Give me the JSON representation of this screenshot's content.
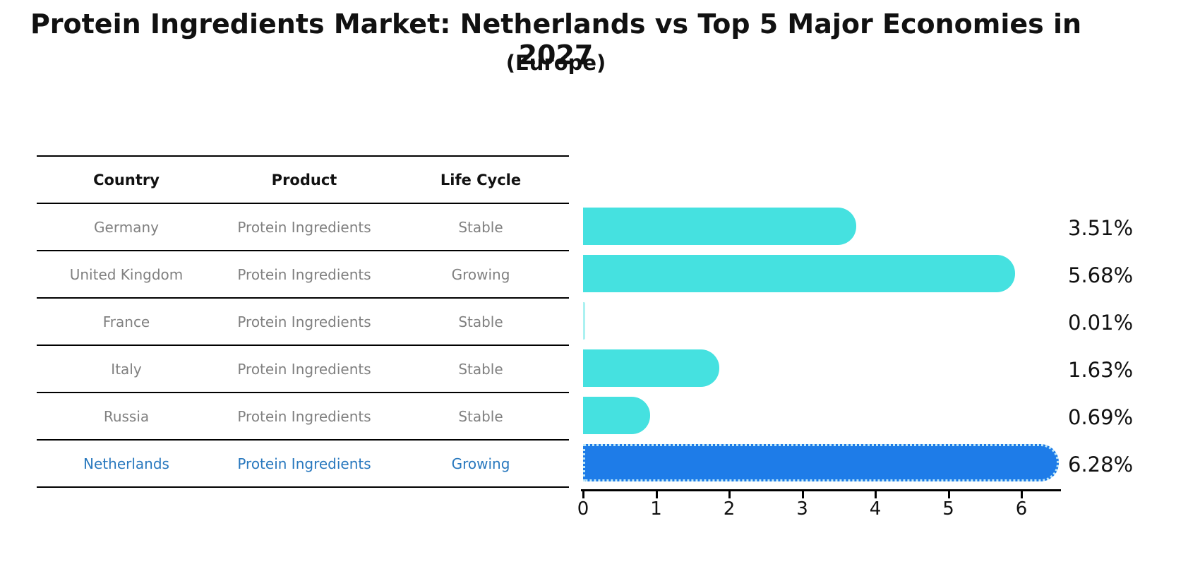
{
  "title": "Protein Ingredients Market: Netherlands vs Top 5 Major Economies in 2027",
  "subtitle": "(Europe)",
  "table": {
    "headers": [
      "Country",
      "Product",
      "Life Cycle"
    ],
    "rows": [
      {
        "country": "Germany",
        "product": "Protein Ingredients",
        "life_cycle": "Stable",
        "highlighted": false
      },
      {
        "country": "United Kingdom",
        "product": "Protein Ingredients",
        "life_cycle": "Growing",
        "highlighted": false
      },
      {
        "country": "France",
        "product": "Protein Ingredients",
        "life_cycle": "Stable",
        "highlighted": false
      },
      {
        "country": "Italy",
        "product": "Protein Ingredients",
        "life_cycle": "Stable",
        "highlighted": false
      },
      {
        "country": "Russia",
        "product": "Protein Ingredients",
        "life_cycle": "Stable",
        "highlighted": false
      },
      {
        "country": "Netherlands",
        "product": "Protein Ingredients",
        "life_cycle": "Growing",
        "highlighted": true
      }
    ]
  },
  "chart_data": {
    "type": "bar",
    "orientation": "horizontal",
    "title": "Protein Ingredients Market: Netherlands vs Top 5 Major Economies in 2027 (Europe)",
    "categories": [
      "Germany",
      "United Kingdom",
      "France",
      "Italy",
      "Russia",
      "Netherlands"
    ],
    "values": [
      3.51,
      5.68,
      0.01,
      1.63,
      0.69,
      6.28
    ],
    "value_labels": [
      "3.51%",
      "5.68%",
      "0.01%",
      "1.63%",
      "0.69%",
      "6.28%"
    ],
    "xlabel": "",
    "ylabel": "",
    "x_ticks": [
      0,
      1,
      2,
      3,
      4,
      5,
      6
    ],
    "xlim": [
      0,
      6.55
    ],
    "grid": false,
    "legend_position": "none",
    "highlight_index": 5,
    "bar_color": "#45E1E0",
    "highlight_bar_color": "#1E7CE8",
    "highlight_border_color": "#BEE8F8"
  },
  "colors": {
    "highlight_text": "#2878BE",
    "row_text": "#808080",
    "header_text": "#111111",
    "axis_color": "#000000"
  }
}
